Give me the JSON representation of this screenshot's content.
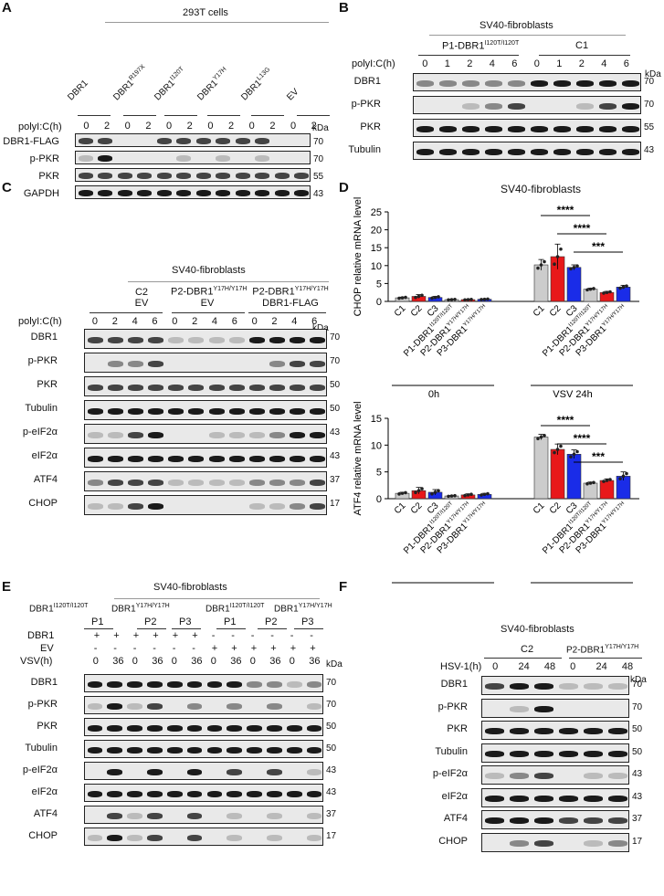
{
  "panels": {
    "A": "A",
    "B": "B",
    "C": "C",
    "D": "D",
    "E": "E",
    "F": "F"
  },
  "kda": "kDa",
  "A": {
    "cell_line": "293T cells",
    "groups": [
      "DBR1",
      "DBR1R197X",
      "DBR1I120T",
      "DBR1Y17H",
      "DBR1L13G",
      "EV"
    ],
    "group_main": [
      "DBR1",
      "DBR1",
      "DBR1",
      "DBR1",
      "DBR1",
      "EV"
    ],
    "group_sup": [
      "",
      "R197X",
      "I120T",
      "Y17H",
      "L13G",
      ""
    ],
    "treatment": "polyI:C(h)",
    "times": [
      "0",
      "2",
      "0",
      "2",
      "0",
      "2",
      "0",
      "2",
      "0",
      "2",
      "0",
      "2"
    ],
    "rows": [
      "DBR1-FLAG",
      "p-PKR",
      "PKR",
      "GAPDH"
    ],
    "markers": [
      "70",
      "70",
      "55",
      "43"
    ]
  },
  "B": {
    "cell_line": "SV40-fibroblasts",
    "groups": [
      "P1-DBR1I120T/I120T",
      "C1"
    ],
    "group1_main": "P1-DBR1",
    "group1_sup": "I120T/I120T",
    "group2": "C1",
    "treatment": "polyI:C(h)",
    "times": [
      "0",
      "1",
      "2",
      "4",
      "6",
      "0",
      "1",
      "2",
      "4",
      "6"
    ],
    "rows": [
      "DBR1",
      "p-PKR",
      "PKR",
      "Tubulin"
    ],
    "markers": [
      "70",
      "70",
      "55",
      "43"
    ]
  },
  "C": {
    "cell_line": "SV40-fibroblasts",
    "group1_l1": "C2",
    "group1_l2": "EV",
    "group2_main": "P2-DBR1",
    "group2_sup": "Y17H/Y17H",
    "group2_l2": "EV",
    "group3_main": "P2-DBR1",
    "group3_sup": "Y17H/Y17H",
    "group3_l2": "DBR1-FLAG",
    "treatment": "polyI:C(h)",
    "times": [
      "0",
      "2",
      "4",
      "6",
      "0",
      "2",
      "4",
      "6",
      "0",
      "2",
      "4",
      "6"
    ],
    "rows": [
      "DBR1",
      "p-PKR",
      "PKR",
      "Tubulin",
      "p-eIF2α",
      "eIF2α",
      "ATF4",
      "CHOP"
    ],
    "markers": [
      "70",
      "70",
      "50",
      "50",
      "43",
      "43",
      "37",
      "17"
    ]
  },
  "D": {
    "title": "SV40-fibroblasts",
    "x_categories": [
      "C1",
      "C2",
      "C3",
      "P1-DBR1I120T/I120T",
      "P2-DBR1Y17H/Y17H",
      "P3-DBR1Y17H/Y17H"
    ],
    "x_main": [
      "C1",
      "C2",
      "C3",
      "P1-DBR1",
      "P2-DBR1",
      "P3-DBR1"
    ],
    "x_sup": [
      "",
      "",
      "",
      "I120T/I120T",
      "Y17H/Y17H",
      "Y17H/Y17H"
    ],
    "group_labels": [
      "0h",
      "VSV 24h"
    ],
    "colors": {
      "control": "#cccccc",
      "p1": "#e8181a",
      "p2": "#1a2ce8",
      "dot": "#222222"
    }
  },
  "chart_data": [
    {
      "type": "bar",
      "title": "SV40-fibroblasts",
      "ylabel": "CHOP relative  mRNA level",
      "ylim": [
        0,
        25
      ],
      "yticks": [
        0,
        5,
        10,
        15,
        20,
        25
      ],
      "groups": [
        "0h",
        "VSV 24h"
      ],
      "categories": [
        "C1",
        "C2",
        "C3",
        "P1-DBR1I120T/I120T",
        "P2-DBR1Y17H/Y17H",
        "P3-DBR1Y17H/Y17H"
      ],
      "series": [
        {
          "name": "0h",
          "values": [
            1.0,
            1.4,
            1.1,
            0.5,
            0.5,
            0.6
          ]
        },
        {
          "name": "VSV 24h",
          "values": [
            10.2,
            12.5,
            9.5,
            3.4,
            2.5,
            4.0
          ]
        }
      ],
      "error": [
        [
          0.2,
          0.5,
          0.3,
          0.1,
          0.1,
          0.1
        ],
        [
          1.5,
          3.5,
          0.7,
          0.3,
          0.3,
          0.5
        ]
      ],
      "significance": [
        "****",
        "****",
        "***"
      ]
    },
    {
      "type": "bar",
      "ylabel": "ATF4 relative mRNA level",
      "ylim": [
        0,
        15
      ],
      "yticks": [
        0,
        5,
        10,
        15
      ],
      "groups": [
        "0h",
        "VSV 24h"
      ],
      "categories": [
        "C1",
        "C2",
        "C3",
        "P1-DBR1I120T/I120T",
        "P2-DBR1Y17H/Y17H",
        "P3-DBR1Y17H/Y17H"
      ],
      "series": [
        {
          "name": "0h",
          "values": [
            1.0,
            1.5,
            1.2,
            0.5,
            0.7,
            0.8
          ]
        },
        {
          "name": "VSV 24h",
          "values": [
            11.5,
            9.2,
            8.3,
            2.9,
            3.4,
            4.2
          ]
        }
      ],
      "error": [
        [
          0.2,
          0.6,
          0.5,
          0.1,
          0.2,
          0.2
        ],
        [
          0.5,
          1.0,
          0.8,
          0.2,
          0.3,
          0.8
        ]
      ],
      "significance": [
        "****",
        "****",
        "***"
      ]
    }
  ],
  "E": {
    "cell_line": "SV40-fibroblasts",
    "geno_left": "DBR1I120T/I120T",
    "geno_left_main": "DBR1",
    "geno_left_sup": "I120T/I120T",
    "geno_mid": "DBR1Y17H/Y17H",
    "geno_mid_main": "DBR1",
    "geno_mid_sup": "Y17H/Y17H",
    "patients": [
      "P1",
      "P2",
      "P3",
      "P1",
      "P2",
      "P3"
    ],
    "row_dbr1": "DBR1",
    "row_ev": "EV",
    "row_vsv": "VSV(h)",
    "dbr1_signs": [
      "+",
      "+",
      "+",
      "+",
      "+",
      "+",
      "-",
      "-",
      "-",
      "-",
      "-",
      "-"
    ],
    "ev_signs": [
      "-",
      "-",
      "-",
      "-",
      "-",
      "-",
      "+",
      "+",
      "+",
      "+",
      "+",
      "+"
    ],
    "times": [
      "0",
      "36",
      "0",
      "36",
      "0",
      "36",
      "0",
      "36",
      "0",
      "36",
      "0",
      "36"
    ],
    "rows": [
      "DBR1",
      "p-PKR",
      "PKR",
      "Tubulin",
      "p-eIF2α",
      "eIF2α",
      "ATF4",
      "CHOP"
    ],
    "markers": [
      "70",
      "70",
      "50",
      "50",
      "43",
      "43",
      "37",
      "17"
    ]
  },
  "F": {
    "cell_line": "SV40-fibroblasts",
    "group1": "C2",
    "group2_main": "P2-DBR1",
    "group2_sup": "Y17H/Y17H",
    "treatment": "HSV-1(h)",
    "times": [
      "0",
      "24",
      "48",
      "0",
      "24",
      "48"
    ],
    "rows": [
      "DBR1",
      "p-PKR",
      "PKR",
      "Tubulin",
      "p-eIF2α",
      "eIF2α",
      "ATF4",
      "CHOP"
    ],
    "markers": [
      "70",
      "70",
      "50",
      "50",
      "43",
      "43",
      "37",
      "17"
    ]
  }
}
